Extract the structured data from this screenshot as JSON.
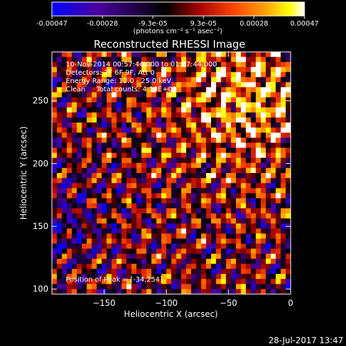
{
  "colorbar": {
    "tick_labels": [
      "-0.00047",
      "-0.00028",
      "-9.3e-05",
      "9.3e-05",
      "0.00028",
      "0.00047"
    ],
    "unit_label": "(photons cm⁻² s⁻¹ asec⁻²)",
    "range": [
      -0.00047,
      0.00047
    ],
    "colormap": [
      "#0000ff",
      "#4b00a0",
      "#000000",
      "#a00000",
      "#ff4500",
      "#ffa500",
      "#ffff00",
      "#ffffff"
    ]
  },
  "chart_data": {
    "type": "heatmap",
    "title": "Reconstructed RHESSI Image",
    "xlabel": "Heliocentric X (arcsec)",
    "ylabel": "Heliocentric Y (arcsec)",
    "xlim": [
      -192,
      0
    ],
    "ylim": [
      96,
      289
    ],
    "x_ticks": [
      -150,
      -100,
      -50,
      0
    ],
    "y_ticks": [
      100,
      150,
      200,
      250
    ],
    "annotations": [
      "10-Nov-2014 00:57:44.000 to 01:07:44.000",
      "Detectors: 3F 6F 9F, Att 0",
      "Energy Range: 12.0 - 25.0 keV",
      "Clean     Total counts: 4.10E+03"
    ],
    "peak_label": "Position of Peak = [-34,254]",
    "peak_position": [
      -34,
      254
    ]
  },
  "footer": {
    "timestamp": "28-Jul-2017 13:47"
  }
}
